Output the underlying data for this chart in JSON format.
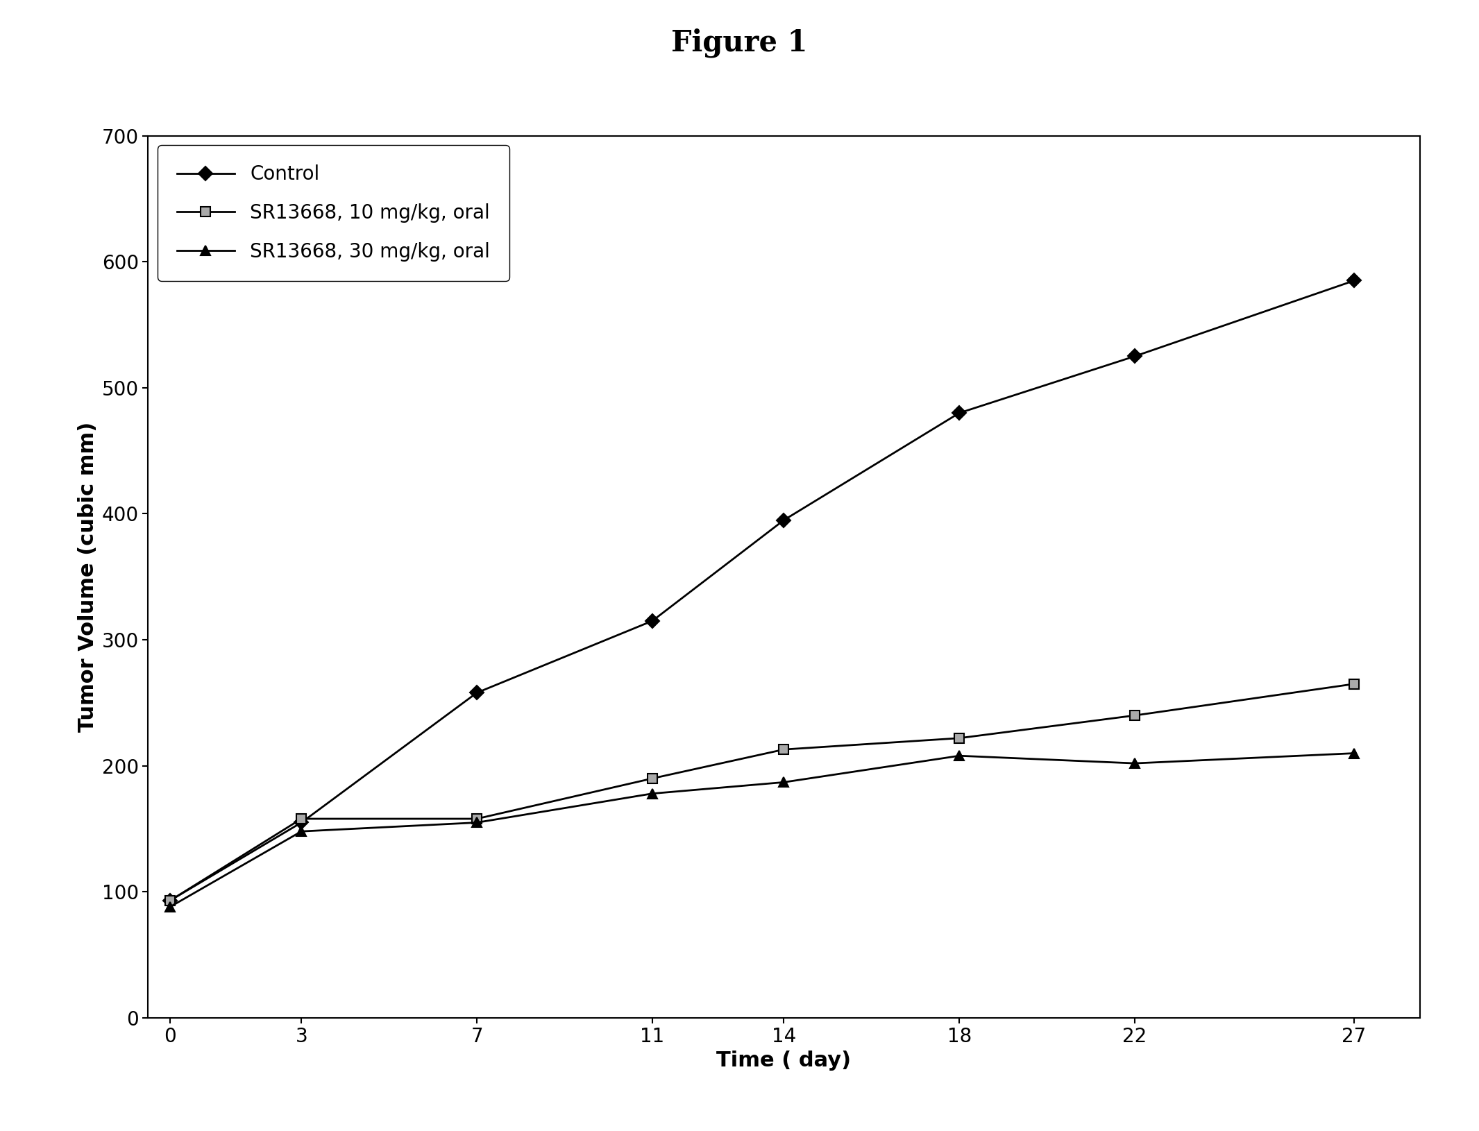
{
  "title": "Figure 1",
  "xlabel": "Time ( day)",
  "ylabel": "Tumor Volume (cubic mm)",
  "x_ticks": [
    0,
    3,
    7,
    11,
    14,
    18,
    22,
    27
  ],
  "xlim": [
    -0.5,
    28.5
  ],
  "ylim": [
    0,
    700
  ],
  "yticks": [
    0,
    100,
    200,
    300,
    400,
    500,
    600,
    700
  ],
  "series": [
    {
      "label": "Control",
      "x": [
        0,
        3,
        7,
        11,
        14,
        18,
        22,
        27
      ],
      "y": [
        93,
        155,
        258,
        315,
        395,
        480,
        525,
        585
      ],
      "color": "#000000",
      "marker": "D",
      "marker_size": 10,
      "linestyle": "-",
      "linewidth": 2.0,
      "markerfacecolor": "#000000"
    },
    {
      "label": "SR13668, 10 mg/kg, oral",
      "x": [
        0,
        3,
        7,
        11,
        14,
        18,
        22,
        27
      ],
      "y": [
        93,
        158,
        158,
        190,
        213,
        222,
        240,
        265
      ],
      "color": "#000000",
      "marker": "s",
      "marker_size": 10,
      "linestyle": "-",
      "linewidth": 2.0,
      "markerfacecolor": "#aaaaaa"
    },
    {
      "label": "SR13668, 30 mg/kg, oral",
      "x": [
        0,
        3,
        7,
        11,
        14,
        18,
        22,
        27
      ],
      "y": [
        88,
        148,
        155,
        178,
        187,
        208,
        202,
        210
      ],
      "color": "#000000",
      "marker": "^",
      "marker_size": 10,
      "linestyle": "-",
      "linewidth": 2.0,
      "markerfacecolor": "#000000"
    }
  ],
  "legend_loc": "upper left",
  "legend_fontsize": 20,
  "title_fontsize": 30,
  "axis_label_fontsize": 22,
  "tick_fontsize": 20,
  "background_color": "#ffffff",
  "plot_bg_color": "#ffffff",
  "figure_width": 21.31,
  "figure_height": 16.3,
  "dpi": 100
}
